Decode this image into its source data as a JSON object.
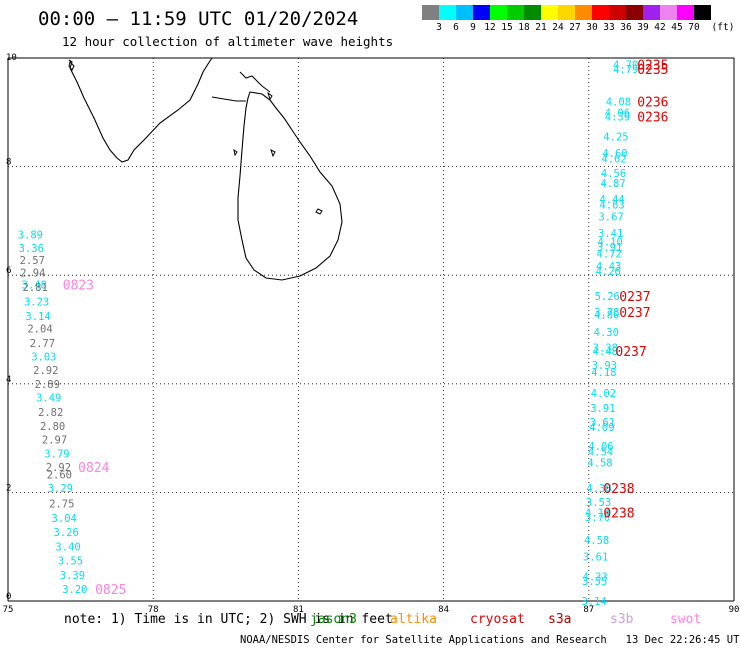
{
  "header": {
    "title": "00:00 – 11:59 UTC 01/20/2024",
    "subtitle": "12 hour collection of altimeter wave heights"
  },
  "colorbar": {
    "unit": "(ft)",
    "bins": [
      {
        "label": "3",
        "color": "#808080"
      },
      {
        "label": "6",
        "color": "#00ffff"
      },
      {
        "label": "9",
        "color": "#00bfff"
      },
      {
        "label": "12",
        "color": "#0000ff"
      },
      {
        "label": "15",
        "color": "#00ff00"
      },
      {
        "label": "18",
        "color": "#00cd00"
      },
      {
        "label": "21",
        "color": "#008b00"
      },
      {
        "label": "24",
        "color": "#ffff00"
      },
      {
        "label": "27",
        "color": "#ffd700"
      },
      {
        "label": "30",
        "color": "#ff8c00"
      },
      {
        "label": "33",
        "color": "#ff0000"
      },
      {
        "label": "36",
        "color": "#cd0000"
      },
      {
        "label": "39",
        "color": "#8b0000"
      },
      {
        "label": "42",
        "color": "#a020f0"
      },
      {
        "label": "45",
        "color": "#ee82ee"
      },
      {
        "label": "70",
        "color": "#ff00ff"
      },
      {
        "label": "",
        "color": "#000000"
      }
    ]
  },
  "map": {
    "lon_range": [
      75,
      90
    ],
    "lat_range": [
      0,
      10
    ],
    "x_ticks": [
      "75",
      "78",
      "81",
      "84",
      "87",
      "90"
    ],
    "y_ticks": [
      "0",
      "2",
      "4",
      "6",
      "8",
      "10"
    ],
    "colors": {
      "cyan": "#00e0f0",
      "gray": "#707070",
      "red": "#e00000",
      "pink": "#ff80e0"
    },
    "west_track": [
      {
        "lon": 75.2,
        "lat": 6.75,
        "v": "3.89",
        "c": "cyan"
      },
      {
        "lon": 75.22,
        "lat": 6.5,
        "v": "3.36",
        "c": "cyan"
      },
      {
        "lon": 75.24,
        "lat": 6.28,
        "v": "2.57",
        "c": "gray"
      },
      {
        "lon": 75.25,
        "lat": 6.05,
        "v": "2.94",
        "c": "gray"
      },
      {
        "lon": 75.28,
        "lat": 5.83,
        "v": "3.48",
        "c": "cyan"
      },
      {
        "lon": 75.3,
        "lat": 5.78,
        "v": "2.81",
        "c": "gray"
      },
      {
        "lon": 75.33,
        "lat": 5.52,
        "v": "3.23",
        "c": "cyan"
      },
      {
        "lon": 75.36,
        "lat": 5.25,
        "v": "3.14",
        "c": "cyan"
      },
      {
        "lon": 75.4,
        "lat": 5.02,
        "v": "2.04",
        "c": "gray"
      },
      {
        "lon": 75.45,
        "lat": 4.75,
        "v": "2.77",
        "c": "gray"
      },
      {
        "lon": 75.48,
        "lat": 4.5,
        "v": "3.03",
        "c": "cyan"
      },
      {
        "lon": 75.52,
        "lat": 4.25,
        "v": "2.92",
        "c": "gray"
      },
      {
        "lon": 75.55,
        "lat": 4.0,
        "v": "2.89",
        "c": "gray"
      },
      {
        "lon": 75.58,
        "lat": 3.75,
        "v": "3.49",
        "c": "cyan"
      },
      {
        "lon": 75.62,
        "lat": 3.48,
        "v": "2.82",
        "c": "gray"
      },
      {
        "lon": 75.66,
        "lat": 3.22,
        "v": "2.80",
        "c": "gray"
      },
      {
        "lon": 75.7,
        "lat": 2.97,
        "v": "2.97",
        "c": "gray"
      },
      {
        "lon": 75.75,
        "lat": 2.72,
        "v": "3.79",
        "c": "cyan"
      },
      {
        "lon": 75.78,
        "lat": 2.47,
        "v": "2.92",
        "c": "gray"
      },
      {
        "lon": 75.8,
        "lat": 2.33,
        "v": "2.60",
        "c": "gray"
      },
      {
        "lon": 75.82,
        "lat": 2.08,
        "v": "3.29",
        "c": "cyan"
      },
      {
        "lon": 75.85,
        "lat": 1.8,
        "v": "2.75",
        "c": "gray"
      },
      {
        "lon": 75.9,
        "lat": 1.53,
        "v": "3.04",
        "c": "cyan"
      },
      {
        "lon": 75.94,
        "lat": 1.27,
        "v": "3.26",
        "c": "cyan"
      },
      {
        "lon": 75.98,
        "lat": 1.0,
        "v": "3.40",
        "c": "cyan"
      },
      {
        "lon": 76.03,
        "lat": 0.75,
        "v": "3.55",
        "c": "cyan"
      },
      {
        "lon": 76.07,
        "lat": 0.48,
        "v": "3.39",
        "c": "cyan"
      },
      {
        "lon": 76.12,
        "lat": 0.22,
        "v": "3.20",
        "c": "cyan"
      }
    ],
    "west_times": [
      {
        "lon": 76.13,
        "lat": 5.83,
        "t": "0823",
        "c": "pink"
      },
      {
        "lon": 76.45,
        "lat": 2.47,
        "t": "0824",
        "c": "pink"
      },
      {
        "lon": 76.8,
        "lat": 0.22,
        "t": "0825",
        "c": "pink"
      }
    ],
    "east_track": [
      {
        "lon": 87.5,
        "lat": 9.88,
        "v": "4.70",
        "c": "cyan"
      },
      {
        "lon": 87.5,
        "lat": 9.8,
        "v": "4.79",
        "c": "cyan"
      },
      {
        "lon": 87.35,
        "lat": 9.2,
        "v": "4.08",
        "c": "cyan"
      },
      {
        "lon": 87.33,
        "lat": 9.0,
        "v": "4.06",
        "c": "cyan"
      },
      {
        "lon": 87.33,
        "lat": 8.92,
        "v": "4.39",
        "c": "cyan"
      },
      {
        "lon": 87.3,
        "lat": 8.55,
        "v": "4.25",
        "c": "cyan"
      },
      {
        "lon": 87.28,
        "lat": 8.25,
        "v": "4.60",
        "c": "cyan"
      },
      {
        "lon": 87.26,
        "lat": 8.15,
        "v": "4.62",
        "c": "cyan"
      },
      {
        "lon": 87.25,
        "lat": 7.88,
        "v": "4.56",
        "c": "cyan"
      },
      {
        "lon": 87.24,
        "lat": 7.7,
        "v": "4.87",
        "c": "cyan"
      },
      {
        "lon": 87.22,
        "lat": 7.4,
        "v": "4.44",
        "c": "cyan"
      },
      {
        "lon": 87.22,
        "lat": 7.3,
        "v": "4.63",
        "c": "cyan"
      },
      {
        "lon": 87.2,
        "lat": 7.08,
        "v": "3.67",
        "c": "cyan"
      },
      {
        "lon": 87.19,
        "lat": 6.78,
        "v": "3.41",
        "c": "cyan"
      },
      {
        "lon": 87.18,
        "lat": 6.62,
        "v": "4.10",
        "c": "cyan"
      },
      {
        "lon": 87.17,
        "lat": 6.52,
        "v": "3.91",
        "c": "cyan"
      },
      {
        "lon": 87.16,
        "lat": 6.4,
        "v": "4.72",
        "c": "cyan"
      },
      {
        "lon": 87.15,
        "lat": 6.17,
        "v": "4.43",
        "c": "cyan"
      },
      {
        "lon": 87.14,
        "lat": 6.08,
        "v": "4.26",
        "c": "cyan"
      },
      {
        "lon": 87.12,
        "lat": 5.62,
        "v": "5.26",
        "c": "cyan"
      },
      {
        "lon": 87.11,
        "lat": 5.32,
        "v": "3.78",
        "c": "cyan"
      },
      {
        "lon": 87.11,
        "lat": 5.28,
        "v": "4.80",
        "c": "cyan"
      },
      {
        "lon": 87.1,
        "lat": 4.95,
        "v": "4.30",
        "c": "cyan"
      },
      {
        "lon": 87.08,
        "lat": 4.67,
        "v": "3.38",
        "c": "cyan"
      },
      {
        "lon": 87.08,
        "lat": 4.6,
        "v": "4.48",
        "c": "cyan"
      },
      {
        "lon": 87.06,
        "lat": 4.35,
        "v": "3.93",
        "c": "cyan"
      },
      {
        "lon": 87.05,
        "lat": 4.22,
        "v": "4.18",
        "c": "cyan"
      },
      {
        "lon": 87.04,
        "lat": 3.83,
        "v": "4.02",
        "c": "cyan"
      },
      {
        "lon": 87.03,
        "lat": 3.55,
        "v": "3.91",
        "c": "cyan"
      },
      {
        "lon": 87.02,
        "lat": 3.3,
        "v": "3.61",
        "c": "cyan"
      },
      {
        "lon": 87.01,
        "lat": 3.2,
        "v": "4.09",
        "c": "cyan"
      },
      {
        "lon": 86.99,
        "lat": 2.85,
        "v": "4.06",
        "c": "cyan"
      },
      {
        "lon": 86.98,
        "lat": 2.75,
        "v": "4.54",
        "c": "cyan"
      },
      {
        "lon": 86.97,
        "lat": 2.55,
        "v": "4.58",
        "c": "cyan"
      },
      {
        "lon": 86.95,
        "lat": 2.08,
        "v": "4.38",
        "c": "cyan"
      },
      {
        "lon": 86.94,
        "lat": 1.82,
        "v": "3.53",
        "c": "cyan"
      },
      {
        "lon": 86.92,
        "lat": 1.63,
        "v": "4.14",
        "c": "cyan"
      },
      {
        "lon": 86.92,
        "lat": 1.55,
        "v": "3.76",
        "c": "cyan"
      },
      {
        "lon": 86.9,
        "lat": 1.12,
        "v": "4.58",
        "c": "cyan"
      },
      {
        "lon": 86.88,
        "lat": 0.82,
        "v": "3.61",
        "c": "cyan"
      },
      {
        "lon": 86.87,
        "lat": 0.45,
        "v": "4.33",
        "c": "cyan"
      },
      {
        "lon": 86.86,
        "lat": 0.37,
        "v": "3.55",
        "c": "cyan"
      },
      {
        "lon": 86.85,
        "lat": 0.0,
        "v": "3.14",
        "c": "cyan"
      }
    ],
    "east_times": [
      {
        "lon": 88.0,
        "lat": 9.88,
        "t": "0235",
        "c": "red"
      },
      {
        "lon": 88.0,
        "lat": 9.8,
        "t": "0235",
        "c": "red"
      },
      {
        "lon": 88.0,
        "lat": 9.2,
        "t": "0236",
        "c": "red"
      },
      {
        "lon": 88.0,
        "lat": 8.92,
        "t": "0236",
        "c": "red"
      },
      {
        "lon": 87.63,
        "lat": 5.62,
        "t": "0237",
        "c": "red"
      },
      {
        "lon": 87.63,
        "lat": 5.32,
        "t": "0237",
        "c": "red"
      },
      {
        "lon": 87.55,
        "lat": 4.6,
        "t": "0237",
        "c": "red"
      },
      {
        "lon": 87.3,
        "lat": 2.08,
        "t": "0238",
        "c": "red"
      },
      {
        "lon": 87.3,
        "lat": 1.63,
        "t": "0238",
        "c": "red"
      }
    ]
  },
  "note": {
    "text": "note: 1) Time is in UTC; 2) SWH is in feet",
    "satellites": [
      {
        "name": "jason3",
        "color": "#008b00"
      },
      {
        "name": "altika",
        "color": "#ff8c00"
      },
      {
        "name": "cryosat",
        "color": "#e00000"
      },
      {
        "name": "s3a",
        "color": "#b00000"
      },
      {
        "name": "s3b",
        "color": "#c8a0e0"
      },
      {
        "name": "swot",
        "color": "#ff80e0"
      }
    ]
  },
  "footer": {
    "credit": "NOAA/NESDIS Center for Satellite Applications and Research",
    "timestamp": "13 Dec 22:26:45 UTC 2024"
  }
}
